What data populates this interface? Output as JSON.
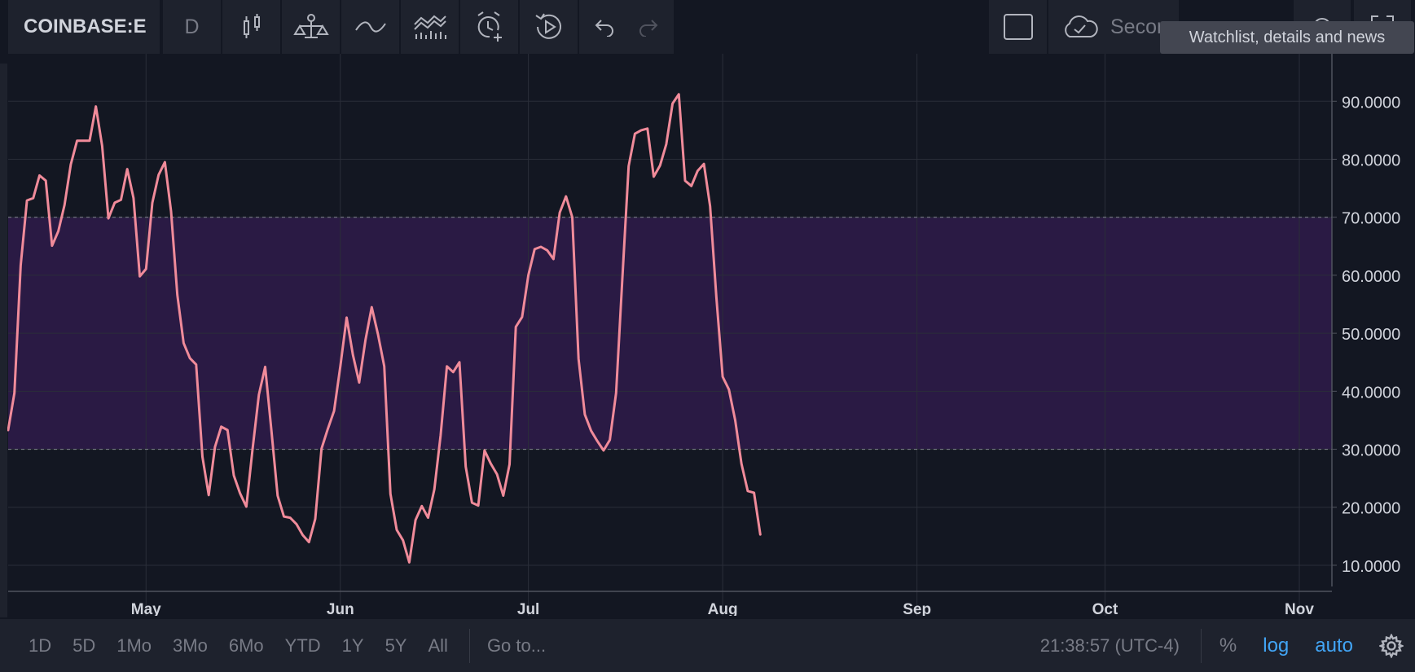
{
  "toolbar": {
    "symbol": "COINBASE:E",
    "interval": "D",
    "cloud_label": "Secon",
    "tooltip": "Watchlist, details and news",
    "icons": [
      "candles-icon",
      "compare-icon",
      "indicator-icon",
      "multi-indicator-icon",
      "alert-icon",
      "replay-icon",
      "undo-icon",
      "redo-icon",
      "square-icon",
      "cloud-icon",
      "gear-icon",
      "fullscreen-icon"
    ]
  },
  "colors": {
    "background": "#131722",
    "panel": "#1e222d",
    "line": "#f08b9a",
    "band_fill": "#2a1a44",
    "grid": "#2a2e39",
    "accent_blue": "#42a5f5"
  },
  "chart_data": {
    "type": "line",
    "x_axis": {
      "type": "date",
      "range": [
        "2019-04-09",
        "2019-11-01"
      ],
      "tick_labels": [
        "May",
        "Jun",
        "Jul",
        "Aug",
        "Sep",
        "Oct",
        "Nov"
      ],
      "tick_dates": [
        "2019-05-01",
        "2019-06-01",
        "2019-07-01",
        "2019-08-01",
        "2019-09-01",
        "2019-10-01",
        "2019-11-01"
      ]
    },
    "y_axis": {
      "range": [
        5.5,
        96.5
      ],
      "tick_labels": [
        "90.0000",
        "80.0000",
        "70.0000",
        "60.0000",
        "50.0000",
        "40.0000",
        "30.0000",
        "20.0000",
        "10.0000"
      ],
      "tick_values": [
        90,
        80,
        70,
        60,
        50,
        40,
        30,
        20,
        10
      ],
      "position": "right"
    },
    "band": {
      "upper": 70,
      "lower": 30
    },
    "grid": true,
    "series": [
      {
        "color": "#f08b9a",
        "x": [
          "2019-04-09",
          "2019-04-10",
          "2019-04-11",
          "2019-04-12",
          "2019-04-13",
          "2019-04-14",
          "2019-04-15",
          "2019-04-16",
          "2019-04-17",
          "2019-04-18",
          "2019-04-19",
          "2019-04-20",
          "2019-04-21",
          "2019-04-22",
          "2019-04-23",
          "2019-04-24",
          "2019-04-25",
          "2019-04-26",
          "2019-04-27",
          "2019-04-28",
          "2019-04-29",
          "2019-04-30",
          "2019-05-01",
          "2019-05-02",
          "2019-05-03",
          "2019-05-04",
          "2019-05-05",
          "2019-05-06",
          "2019-05-07",
          "2019-05-08",
          "2019-05-09",
          "2019-05-10",
          "2019-05-11",
          "2019-05-12",
          "2019-05-13",
          "2019-05-14",
          "2019-05-15",
          "2019-05-16",
          "2019-05-17",
          "2019-05-18",
          "2019-05-19",
          "2019-05-20",
          "2019-05-21",
          "2019-05-22",
          "2019-05-23",
          "2019-05-24",
          "2019-05-25",
          "2019-05-26",
          "2019-05-27",
          "2019-05-28",
          "2019-05-29",
          "2019-05-30",
          "2019-05-31",
          "2019-06-01",
          "2019-06-02",
          "2019-06-03",
          "2019-06-04",
          "2019-06-05",
          "2019-06-06",
          "2019-06-07",
          "2019-06-08",
          "2019-06-09",
          "2019-06-10",
          "2019-06-11",
          "2019-06-12",
          "2019-06-13",
          "2019-06-14",
          "2019-06-15",
          "2019-06-16",
          "2019-06-17",
          "2019-06-18",
          "2019-06-19",
          "2019-06-20",
          "2019-06-21",
          "2019-06-22",
          "2019-06-23",
          "2019-06-24",
          "2019-06-25",
          "2019-06-26",
          "2019-06-27",
          "2019-06-28",
          "2019-06-29",
          "2019-06-30",
          "2019-07-01",
          "2019-07-02",
          "2019-07-03",
          "2019-07-04",
          "2019-07-05",
          "2019-07-06",
          "2019-07-07",
          "2019-07-08",
          "2019-07-09",
          "2019-07-10",
          "2019-07-11",
          "2019-07-12",
          "2019-07-13",
          "2019-07-14",
          "2019-07-15",
          "2019-07-16",
          "2019-07-17",
          "2019-07-18",
          "2019-07-19",
          "2019-07-20",
          "2019-07-21",
          "2019-07-22",
          "2019-07-23",
          "2019-07-24",
          "2019-07-25",
          "2019-07-26",
          "2019-07-27",
          "2019-07-28",
          "2019-07-29",
          "2019-07-30",
          "2019-07-31",
          "2019-08-01",
          "2019-08-02",
          "2019-08-03",
          "2019-08-04",
          "2019-08-05",
          "2019-08-06",
          "2019-08-07"
        ],
        "y": [
          33.3,
          39.7,
          61.7,
          72.9,
          73.3,
          77.2,
          76.3,
          65.1,
          67.6,
          72.1,
          79.1,
          83.2,
          83.2,
          83.2,
          89.1,
          82.3,
          69.8,
          72.5,
          73.0,
          78.3,
          73.3,
          59.8,
          61.1,
          72.5,
          77.3,
          79.5,
          71.0,
          56.6,
          48.3,
          45.7,
          44.6,
          28.7,
          22.1,
          30.4,
          33.9,
          33.3,
          25.5,
          22.4,
          20.1,
          30.1,
          39.4,
          44.2,
          33.2,
          22.0,
          18.4,
          18.2,
          17.1,
          15.2,
          14.0,
          18.0,
          30.1,
          33.5,
          36.6,
          44.3,
          52.7,
          46.3,
          41.5,
          48.8,
          54.5,
          49.8,
          44.3,
          22.3,
          16.1,
          14.3,
          10.5,
          17.8,
          20.2,
          18.2,
          23.1,
          32.4,
          44.3,
          43.3,
          45.0,
          27.0,
          20.8,
          20.3,
          29.8,
          27.5,
          25.7,
          22.0,
          27.4,
          51.1,
          52.8,
          60.0,
          64.5,
          64.9,
          64.3,
          62.8,
          70.8,
          73.6,
          70.0,
          45.6,
          36.0,
          33.2,
          31.4,
          29.8,
          31.6,
          39.7,
          59.5,
          78.8,
          84.4,
          85.0,
          85.3,
          77.0,
          78.9,
          82.6,
          89.6,
          91.2,
          76.3,
          75.4,
          78.0,
          79.2,
          71.9,
          56.2,
          42.5,
          40.3,
          35.0,
          27.5,
          22.8,
          22.5,
          15.3
        ]
      }
    ]
  },
  "bottom": {
    "ranges": [
      "1D",
      "5D",
      "1Mo",
      "3Mo",
      "6Mo",
      "YTD",
      "1Y",
      "5Y",
      "All"
    ],
    "goto": "Go to...",
    "clock": "21:38:57 (UTC-4)",
    "percent": "%",
    "log": "log",
    "auto": "auto"
  }
}
